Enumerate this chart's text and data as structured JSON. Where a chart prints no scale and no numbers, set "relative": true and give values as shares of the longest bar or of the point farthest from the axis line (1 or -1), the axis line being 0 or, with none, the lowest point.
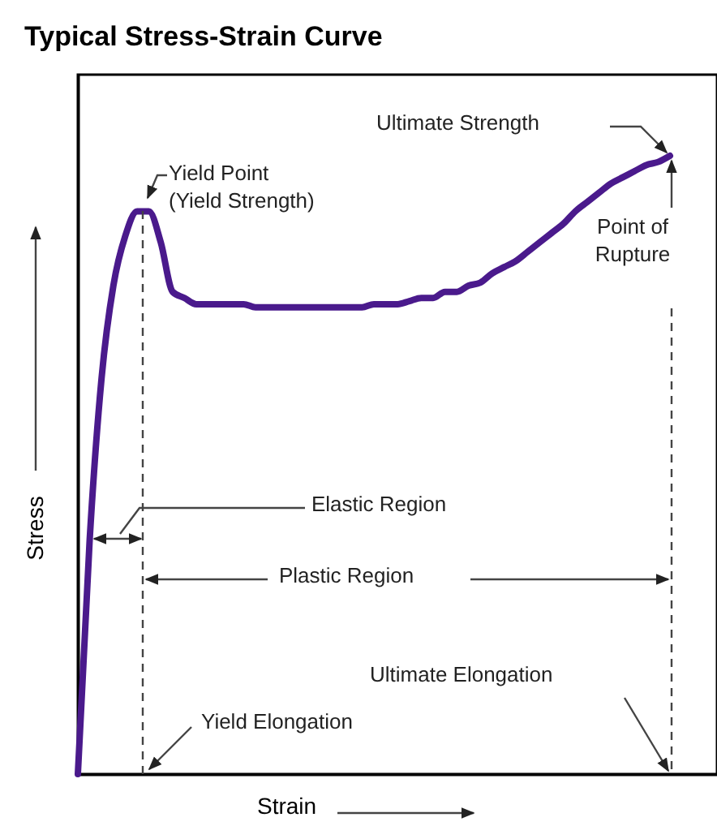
{
  "chart_data": {
    "type": "line",
    "title": "Typical Stress-Strain Curve",
    "xlabel": "Strain",
    "ylabel": "Stress",
    "relative": true,
    "color": "#4a1a8c",
    "categories": [
      null,
      null,
      null,
      null,
      null,
      null,
      null,
      null,
      null,
      null,
      null,
      null,
      null,
      null,
      null,
      null,
      null,
      null,
      null,
      null,
      null,
      null,
      null,
      null,
      null,
      null,
      null,
      null,
      null,
      null,
      null,
      null,
      null,
      null,
      null,
      null,
      null,
      null,
      null,
      null,
      null,
      null,
      null,
      null,
      null,
      null,
      null,
      null,
      null,
      null,
      null
    ],
    "values": [
      0,
      0.38,
      0.64,
      0.79,
      0.87,
      0.91,
      0.91,
      0.86,
      0.78,
      0.77,
      0.76,
      0.76,
      0.76,
      0.76,
      0.76,
      0.755,
      0.755,
      0.755,
      0.755,
      0.755,
      0.755,
      0.755,
      0.755,
      0.755,
      0.755,
      0.76,
      0.76,
      0.76,
      0.765,
      0.77,
      0.77,
      0.78,
      0.78,
      0.79,
      0.795,
      0.81,
      0.82,
      0.83,
      0.845,
      0.86,
      0.875,
      0.89,
      0.91,
      0.925,
      0.94,
      0.955,
      0.965,
      0.975,
      0.985,
      0.99,
      1
    ],
    "annotations": [
      "Yield Point\n(Yield Strength)",
      "Ultimate Strength",
      "Point of\nRupture",
      "Elastic Region",
      "Plastic Region",
      "Ultimate Elongation",
      "Yield Elongation"
    ]
  }
}
